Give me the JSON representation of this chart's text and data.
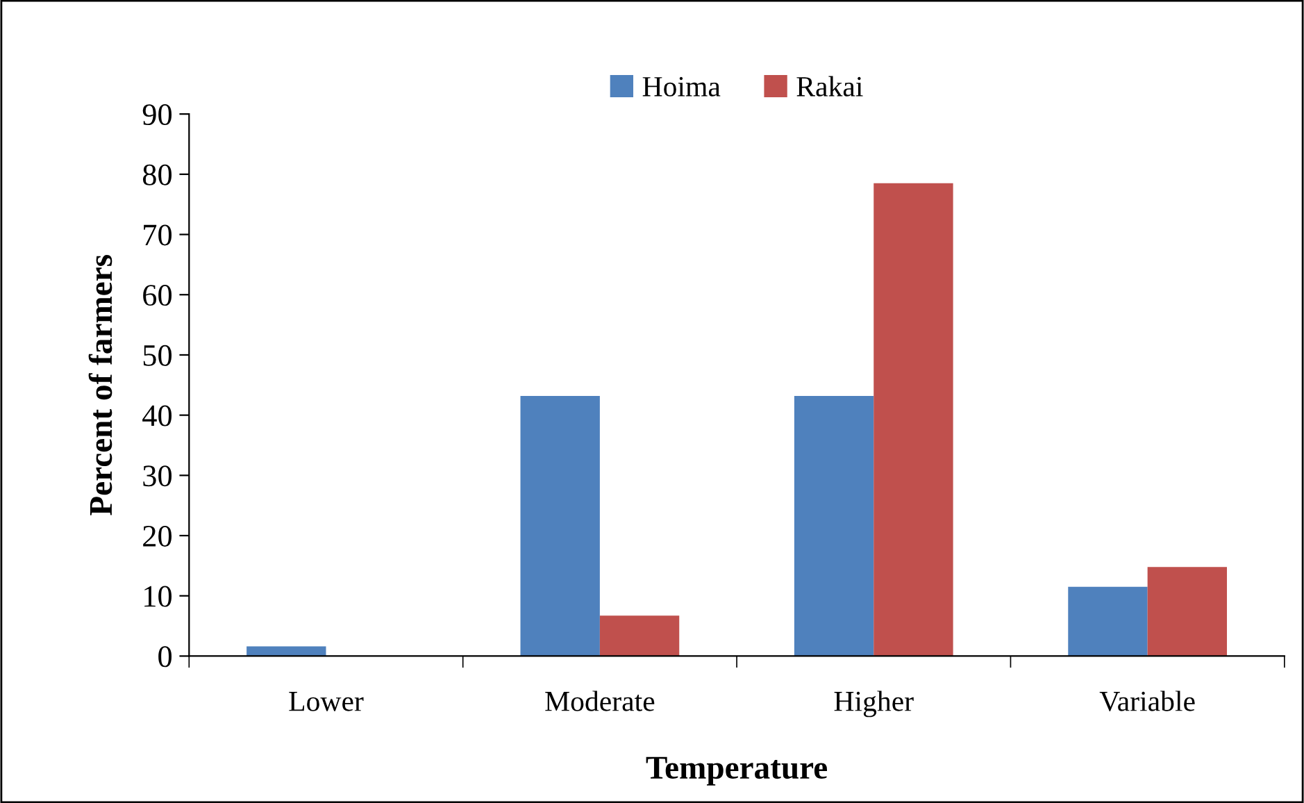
{
  "chart_data": {
    "type": "bar",
    "xlabel": "Temperature",
    "ylabel": "Percent of farmers",
    "categories": [
      "Lower",
      "Moderate",
      "Higher",
      "Variable"
    ],
    "series": [
      {
        "name": "Hoima",
        "color": "#4f81bd",
        "values": [
          1.6,
          43.2,
          43.2,
          11.5
        ]
      },
      {
        "name": "Rakai",
        "color": "#c0504d",
        "values": [
          0,
          6.7,
          78.5,
          14.8
        ]
      }
    ],
    "ylim": [
      0,
      90
    ],
    "yticks": [
      0,
      10,
      20,
      30,
      40,
      50,
      60,
      70,
      80,
      90
    ],
    "grid": false,
    "legend": "top"
  }
}
